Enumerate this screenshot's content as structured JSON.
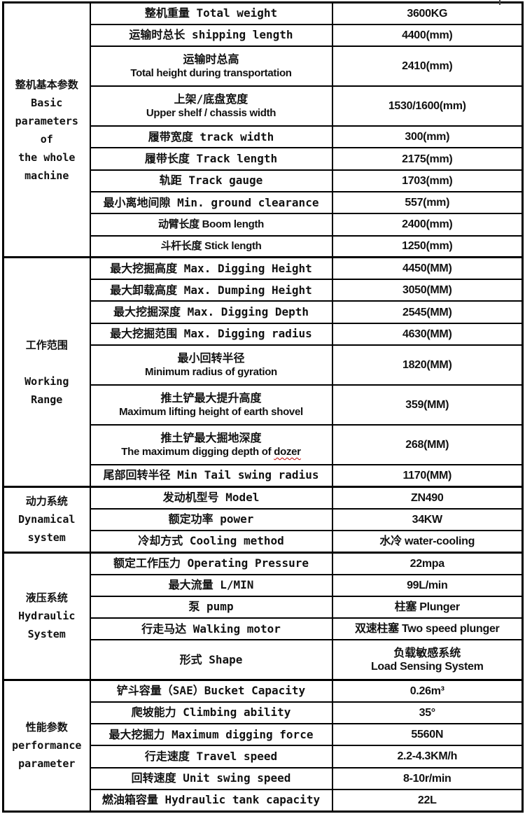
{
  "colors": {
    "border": "#000000",
    "text": "#111111",
    "background": "#ffffff",
    "spellcheck_squiggle": "#c00000"
  },
  "table": {
    "sections": [
      {
        "category": "整机基本参数\nBasic\nparameters of\nthe whole\nmachine",
        "rows": [
          {
            "param_lines": [
              {
                "text": "整机重量 Total weight",
                "font": "mono"
              }
            ],
            "value_lines": [
              {
                "text": "3600KG",
                "font": "sans"
              }
            ]
          },
          {
            "param_lines": [
              {
                "text": "运输时总长 shipping length",
                "font": "mono"
              }
            ],
            "value_lines": [
              {
                "text": "4400(mm)",
                "font": "sans"
              }
            ]
          },
          {
            "param_lines": [
              {
                "text": "运输时总高",
                "font": "mono"
              },
              {
                "text": "Total height during transportation",
                "font": "sans"
              }
            ],
            "value_lines": [
              {
                "text": "2410(mm)",
                "font": "sans"
              }
            ]
          },
          {
            "param_lines": [
              {
                "text": "上架/底盘宽度",
                "font": "mono"
              },
              {
                "text": "Upper shelf / chassis width",
                "font": "sans"
              }
            ],
            "value_lines": [
              {
                "text": "1530/1600(mm)",
                "font": "sans"
              }
            ]
          },
          {
            "param_lines": [
              {
                "text": "履带宽度 track width",
                "font": "mono"
              }
            ],
            "value_lines": [
              {
                "text": "300(mm)",
                "font": "sans"
              }
            ]
          },
          {
            "param_lines": [
              {
                "text": "履带长度 Track length",
                "font": "mono"
              }
            ],
            "value_lines": [
              {
                "text": "2175(mm)",
                "font": "sans"
              }
            ]
          },
          {
            "param_lines": [
              {
                "text": "轨距 Track gauge",
                "font": "mono"
              }
            ],
            "value_lines": [
              {
                "text": "1703(mm)",
                "font": "sans"
              }
            ]
          },
          {
            "param_lines": [
              {
                "text": "最小离地间隙 Min. ground clearance",
                "font": "mono"
              }
            ],
            "value_lines": [
              {
                "text": "557(mm)",
                "font": "sans"
              }
            ]
          },
          {
            "param_lines": [
              {
                "text": "动臂长度 Boom length",
                "font": "sans"
              }
            ],
            "value_lines": [
              {
                "text": "2400(mm)",
                "font": "sans"
              }
            ]
          },
          {
            "param_lines": [
              {
                "text": "斗杆长度 Stick length",
                "font": "sans"
              }
            ],
            "value_lines": [
              {
                "text": "1250(mm)",
                "font": "sans"
              }
            ]
          }
        ]
      },
      {
        "category": "工作范围\n\nWorking Range",
        "rows": [
          {
            "param_lines": [
              {
                "text": "最大挖掘高度 Max. Digging Height",
                "font": "mono"
              }
            ],
            "value_lines": [
              {
                "text": "4450(MM)",
                "font": "sans"
              }
            ]
          },
          {
            "param_lines": [
              {
                "text": "最大卸载高度 Max. Dumping Height",
                "font": "mono"
              }
            ],
            "value_lines": [
              {
                "text": "3050(MM)",
                "font": "sans"
              }
            ]
          },
          {
            "param_lines": [
              {
                "text": "最大挖掘深度 Max. Digging Depth",
                "font": "mono"
              }
            ],
            "value_lines": [
              {
                "text": "2545(MM)",
                "font": "sans"
              }
            ]
          },
          {
            "param_lines": [
              {
                "text": "最大挖掘范围 Max. Digging radius",
                "font": "mono"
              }
            ],
            "value_lines": [
              {
                "text": "4630(MM)",
                "font": "sans"
              }
            ]
          },
          {
            "param_lines": [
              {
                "text": "最小回转半径",
                "font": "mono"
              },
              {
                "text": "Minimum radius of gyration",
                "font": "sans"
              }
            ],
            "value_lines": [
              {
                "text": "1820(MM)",
                "font": "sans"
              }
            ]
          },
          {
            "param_lines": [
              {
                "text": "推土铲最大提升高度",
                "font": "mono"
              },
              {
                "text": "Maximum lifting height of earth shovel",
                "font": "sans"
              }
            ],
            "value_lines": [
              {
                "text": "359(MM)",
                "font": "sans"
              }
            ]
          },
          {
            "param_lines": [
              {
                "text": "推土铲最大掘地深度",
                "font": "mono"
              },
              {
                "text": "The maximum digging depth of dozer",
                "font": "sans",
                "squiggle_word": "dozer"
              }
            ],
            "value_lines": [
              {
                "text": "268(MM)",
                "font": "sans"
              }
            ]
          },
          {
            "param_lines": [
              {
                "text": "尾部回转半径 Min Tail swing radius",
                "font": "mono"
              }
            ],
            "value_lines": [
              {
                "text": "1170(MM)",
                "font": "sans"
              }
            ]
          }
        ]
      },
      {
        "category": "动力系统\nDynamical\nsystem",
        "rows": [
          {
            "param_lines": [
              {
                "text": "发动机型号 Model",
                "font": "mono"
              }
            ],
            "value_lines": [
              {
                "text": "ZN490",
                "font": "sans"
              }
            ]
          },
          {
            "param_lines": [
              {
                "text": "额定功率 power",
                "font": "mono"
              }
            ],
            "value_lines": [
              {
                "text": "34KW",
                "font": "sans"
              }
            ]
          },
          {
            "param_lines": [
              {
                "text": "冷却方式 Cooling method",
                "font": "mono"
              }
            ],
            "value_lines": [
              {
                "text": "水冷 water-cooling",
                "font": "sans"
              }
            ]
          }
        ]
      },
      {
        "category": "液压系统\nHydraulic\nSystem",
        "rows": [
          {
            "param_lines": [
              {
                "text": "额定工作压力 Operating Pressure",
                "font": "mono"
              }
            ],
            "value_lines": [
              {
                "text": "22mpa",
                "font": "sans"
              }
            ]
          },
          {
            "param_lines": [
              {
                "text": "最大流量 L/MIN",
                "font": "mono"
              }
            ],
            "value_lines": [
              {
                "text": "99L/min",
                "font": "sans"
              }
            ]
          },
          {
            "param_lines": [
              {
                "text": "泵 pump",
                "font": "mono"
              }
            ],
            "value_lines": [
              {
                "text": "柱塞 Plunger",
                "font": "sans"
              }
            ]
          },
          {
            "param_lines": [
              {
                "text": "行走马达 Walking motor",
                "font": "mono"
              }
            ],
            "value_lines": [
              {
                "text": "双速柱塞 Two speed plunger",
                "font": "sans"
              }
            ]
          },
          {
            "param_lines": [
              {
                "text": "形式 Shape",
                "font": "mono"
              }
            ],
            "value_lines": [
              {
                "text": "负载敏感系统",
                "font": "mono"
              },
              {
                "text": "Load Sensing System",
                "font": "sans"
              }
            ]
          }
        ]
      },
      {
        "category": "性能参数\nperformance\nparameter",
        "rows": [
          {
            "param_lines": [
              {
                "text": "铲斗容量（SAE）Bucket Capacity",
                "font": "mono"
              }
            ],
            "value_lines": [
              {
                "text": "0.26m³",
                "font": "sans"
              }
            ]
          },
          {
            "param_lines": [
              {
                "text": "爬坡能力 Climbing ability",
                "font": "mono"
              }
            ],
            "value_lines": [
              {
                "text": "35°",
                "font": "sans"
              }
            ]
          },
          {
            "param_lines": [
              {
                "text": "最大挖掘力 Maximum digging force",
                "font": "mono"
              }
            ],
            "value_lines": [
              {
                "text": "5560N",
                "font": "sans"
              }
            ]
          },
          {
            "param_lines": [
              {
                "text": "行走速度 Travel speed",
                "font": "mono"
              }
            ],
            "value_lines": [
              {
                "text": "2.2-4.3KM/h",
                "font": "sans"
              }
            ]
          },
          {
            "param_lines": [
              {
                "text": "回转速度 Unit swing speed",
                "font": "mono"
              }
            ],
            "value_lines": [
              {
                "text": "8-10r/min",
                "font": "sans"
              }
            ]
          },
          {
            "param_lines": [
              {
                "text": "燃油箱容量 Hydraulic tank capacity",
                "font": "mono"
              }
            ],
            "value_lines": [
              {
                "text": "22L",
                "font": "sans"
              }
            ]
          }
        ]
      }
    ]
  }
}
